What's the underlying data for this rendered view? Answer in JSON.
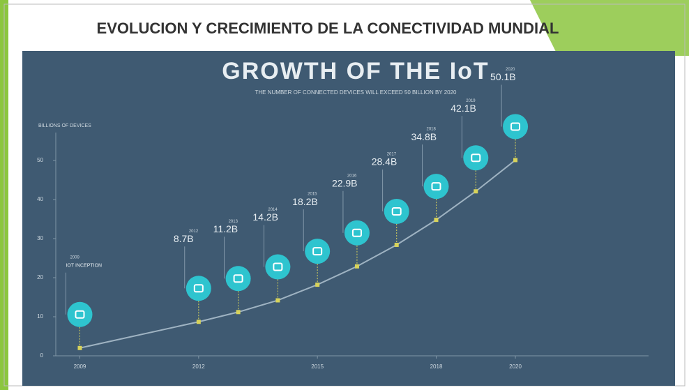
{
  "slide": {
    "title": "EVOLUCION Y CRECIMIENTO DE LA CONECTIVIDAD MUNDIAL"
  },
  "chart_data": {
    "type": "line",
    "title": "GROWTH OF THE IoT",
    "subtitle": "THE NUMBER OF CONNECTED DEVICES WILL EXCEED 50 BILLION BY 2020",
    "y_label": "BILLIONS OF DEVICES",
    "annotation": "IOT INCEPTION",
    "x": [
      2009,
      2012,
      2013,
      2014,
      2015,
      2016,
      2017,
      2018,
      2019,
      2020
    ],
    "series": [
      {
        "name": "Connected devices",
        "color": "#9fb3c2",
        "values": [
          2,
          8.7,
          11.2,
          14.2,
          18.2,
          22.9,
          28.4,
          34.8,
          42.1,
          50.1
        ],
        "value_labels": [
          null,
          "8.7B",
          "11.2B",
          "14.2B",
          "18.2B",
          "22.9B",
          "28.4B",
          "34.8B",
          "42.1B",
          "50.1B"
        ]
      }
    ],
    "xlim": [
      2007.6,
      2022.5
    ],
    "xticks": [
      2009,
      2012,
      2015,
      2018,
      2020
    ],
    "ylim": [
      0,
      55
    ],
    "yticks": [
      0,
      10,
      20,
      30,
      40,
      50
    ],
    "marker_color": "#d8d35a",
    "icon_color": "#2ec4cf"
  }
}
